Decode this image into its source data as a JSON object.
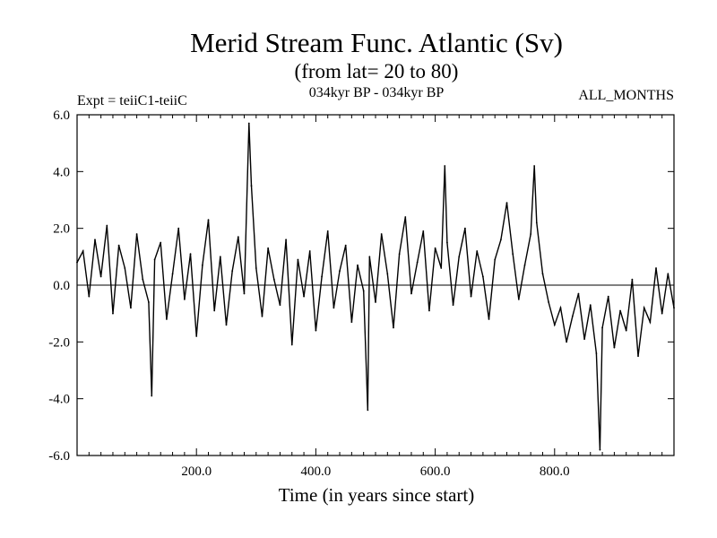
{
  "chart_data": {
    "type": "line",
    "title": "Merid Stream Func. Atlantic (Sv)",
    "subtitle": "(from lat= 20 to 80)",
    "left_label": "Expt = teiiC1-teiiC",
    "center_label": "034kyr BP - 034kyr BP",
    "right_label": "ALL_MONTHS",
    "xlabel": "Time (in years since start)",
    "ylabel": "",
    "xlim": [
      0,
      1000
    ],
    "ylim": [
      -6.0,
      6.0
    ],
    "x_ticks": [
      200.0,
      400.0,
      600.0,
      800.0
    ],
    "x_tick_labels": [
      "200.0",
      "400.0",
      "600.0",
      "800.0"
    ],
    "y_ticks": [
      -6.0,
      -4.0,
      -2.0,
      0.0,
      2.0,
      4.0,
      6.0
    ],
    "y_tick_labels": [
      "-6.0",
      "-4.0",
      "-2.0",
      "0.0",
      "2.0",
      "4.0",
      "6.0"
    ],
    "zero_line": true,
    "grid": false,
    "series": [
      {
        "x": [
          0,
          10,
          20,
          30,
          40,
          50,
          60,
          70,
          80,
          90,
          100,
          110,
          120,
          125,
          130,
          140,
          150,
          160,
          170,
          180,
          190,
          200,
          210,
          220,
          230,
          240,
          250,
          260,
          270,
          280,
          288,
          292,
          300,
          310,
          320,
          330,
          340,
          350,
          360,
          370,
          380,
          390,
          400,
          410,
          420,
          430,
          440,
          450,
          460,
          470,
          480,
          487,
          490,
          500,
          510,
          520,
          530,
          540,
          550,
          560,
          570,
          580,
          590,
          600,
          610,
          616,
          620,
          630,
          640,
          650,
          660,
          670,
          680,
          690,
          700,
          710,
          720,
          730,
          740,
          750,
          760,
          766,
          770,
          780,
          790,
          800,
          810,
          820,
          830,
          840,
          850,
          860,
          870,
          876,
          880,
          890,
          900,
          910,
          920,
          930,
          940,
          950,
          960,
          970,
          980,
          990,
          1000
        ],
        "values": [
          0.8,
          1.2,
          -0.4,
          1.6,
          0.3,
          2.1,
          -1.0,
          1.4,
          0.6,
          -0.8,
          1.8,
          0.2,
          -0.6,
          -3.9,
          0.9,
          1.5,
          -1.2,
          0.4,
          2.0,
          -0.5,
          1.1,
          -1.8,
          0.7,
          2.3,
          -0.9,
          1.0,
          -1.4,
          0.5,
          1.7,
          -0.3,
          5.7,
          3.5,
          0.6,
          -1.1,
          1.3,
          0.2,
          -0.7,
          1.6,
          -2.1,
          0.9,
          -0.4,
          1.2,
          -1.6,
          0.3,
          1.9,
          -0.8,
          0.5,
          1.4,
          -1.3,
          0.7,
          -0.2,
          -4.4,
          1.0,
          -0.6,
          1.8,
          0.4,
          -1.5,
          1.1,
          2.4,
          -0.3,
          0.8,
          1.9,
          -0.9,
          1.3,
          0.6,
          4.2,
          1.5,
          -0.7,
          1.0,
          2.0,
          -0.4,
          1.2,
          0.3,
          -1.2,
          0.9,
          1.6,
          2.9,
          1.1,
          -0.5,
          0.7,
          1.8,
          4.2,
          2.2,
          0.4,
          -0.6,
          -1.4,
          -0.8,
          -2.0,
          -1.1,
          -0.3,
          -1.9,
          -0.7,
          -2.4,
          -5.8,
          -1.5,
          -0.4,
          -2.2,
          -0.9,
          -1.6,
          0.2,
          -2.5,
          -0.8,
          -1.3,
          0.6,
          -1.0,
          0.4,
          -0.8
        ]
      }
    ]
  }
}
